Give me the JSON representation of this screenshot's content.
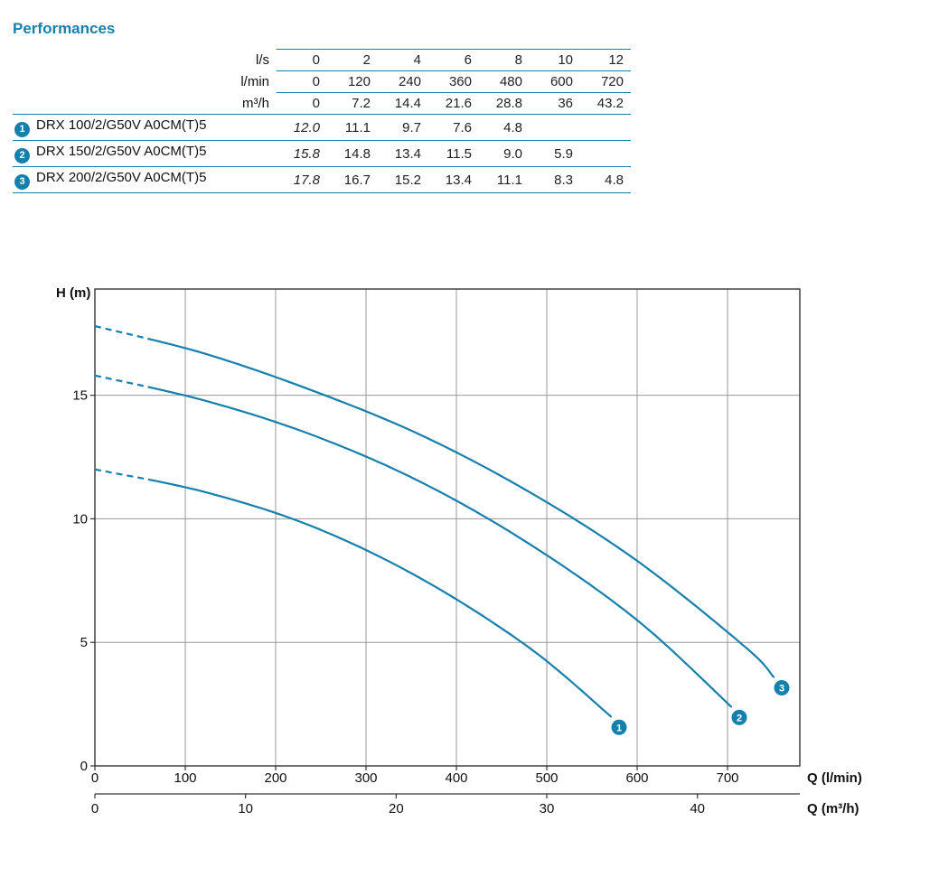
{
  "page": {
    "title": "Performances"
  },
  "colors": {
    "accent": "#1580ad",
    "grid": "#999999",
    "axis": "#333333",
    "text": "#111111"
  },
  "table": {
    "flow_header_rows": [
      {
        "label": "l/s",
        "values": [
          "0",
          "2",
          "4",
          "6",
          "8",
          "10",
          "12"
        ]
      },
      {
        "label": "l/min",
        "values": [
          "0",
          "120",
          "240",
          "360",
          "480",
          "600",
          "720"
        ]
      },
      {
        "label": "m³/h",
        "values": [
          "0",
          "7.2",
          "14.4",
          "21.6",
          "28.8",
          "36",
          "43.2"
        ]
      }
    ],
    "rows": [
      {
        "index": "1",
        "model": "DRX 100/2/G50V A0CM(T)5",
        "values": [
          "12.0",
          "11.1",
          "9.7",
          "7.6",
          "4.8",
          "",
          ""
        ]
      },
      {
        "index": "2",
        "model": "DRX 150/2/G50V A0CM(T)5",
        "values": [
          "15.8",
          "14.8",
          "13.4",
          "11.5",
          "9.0",
          "5.9",
          ""
        ]
      },
      {
        "index": "3",
        "model": "DRX 200/2/G50V A0CM(T)5",
        "values": [
          "17.8",
          "16.7",
          "15.2",
          "13.4",
          "11.1",
          "8.3",
          "4.8"
        ]
      }
    ]
  },
  "chart_data": {
    "type": "line",
    "title": "",
    "ylabel": "H (m)",
    "xlabel_primary": "Q (l/min)",
    "xlabel_secondary": "Q (m³/h)",
    "xlim_lmin": [
      0,
      780
    ],
    "ylim": [
      0,
      19.3
    ],
    "x_lmin_ticks": [
      0,
      100,
      200,
      300,
      400,
      500,
      600,
      700
    ],
    "x_m3h_ticks": [
      0,
      10,
      20,
      30,
      40
    ],
    "y_ticks": [
      0,
      5,
      10,
      15
    ],
    "grid": true,
    "dash_until_lmin": 57,
    "series": [
      {
        "name": "DRX 100/2/G50V A0CM(T)5",
        "marker": "1",
        "points": [
          [
            0,
            12.0
          ],
          [
            120,
            11.1
          ],
          [
            240,
            9.7
          ],
          [
            360,
            7.6
          ],
          [
            480,
            4.8
          ],
          [
            571,
            2.0
          ]
        ]
      },
      {
        "name": "DRX 150/2/G50V A0CM(T)5",
        "marker": "2",
        "points": [
          [
            0,
            15.8
          ],
          [
            120,
            14.8
          ],
          [
            240,
            13.4
          ],
          [
            360,
            11.5
          ],
          [
            480,
            9.0
          ],
          [
            600,
            5.9
          ],
          [
            704,
            2.4
          ]
        ]
      },
      {
        "name": "DRX 200/2/G50V A0CM(T)5",
        "marker": "3",
        "points": [
          [
            0,
            17.8
          ],
          [
            120,
            16.7
          ],
          [
            240,
            15.2
          ],
          [
            360,
            13.4
          ],
          [
            480,
            11.1
          ],
          [
            600,
            8.3
          ],
          [
            720,
            4.8
          ],
          [
            751,
            3.6
          ]
        ]
      }
    ]
  }
}
